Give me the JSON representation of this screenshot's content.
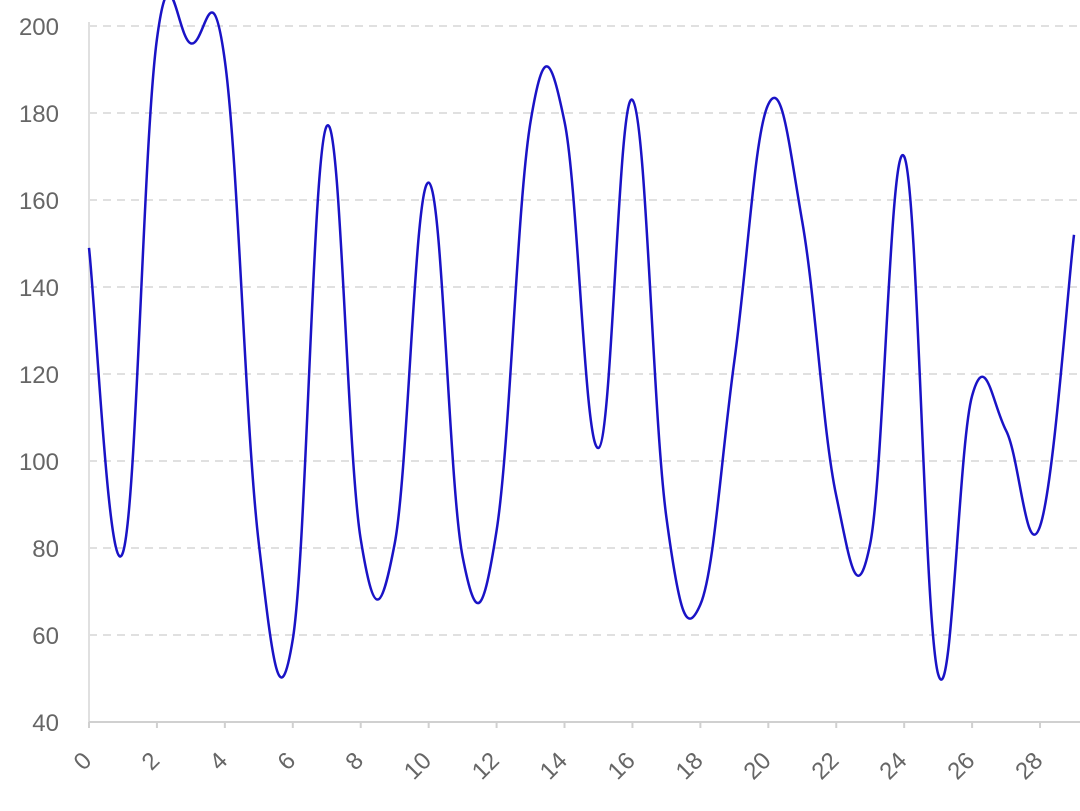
{
  "chart_data": {
    "type": "line",
    "x": [
      0,
      1,
      2,
      3,
      4,
      5,
      6,
      7,
      8,
      9,
      10,
      11,
      12,
      13,
      14,
      15,
      16,
      17,
      18,
      19,
      20,
      21,
      22,
      23,
      24,
      25,
      26,
      27,
      28,
      29
    ],
    "series": [
      {
        "color": "#1a13c6",
        "values": [
          149,
          79,
          197,
          196,
          192,
          81,
          59,
          177,
          82,
          81,
          164,
          78,
          84,
          178,
          178,
          103,
          183,
          87,
          67,
          123,
          182,
          155,
          92,
          81,
          170,
          51,
          115,
          107,
          85,
          152
        ]
      }
    ],
    "xlim": [
      0,
      29
    ],
    "xticks": [
      0,
      2,
      4,
      6,
      8,
      10,
      12,
      14,
      16,
      18,
      20,
      22,
      24,
      26,
      28
    ],
    "ylim": [
      40,
      200
    ],
    "yticks": [
      40,
      60,
      80,
      100,
      120,
      140,
      160,
      180,
      200
    ],
    "grid": true
  }
}
